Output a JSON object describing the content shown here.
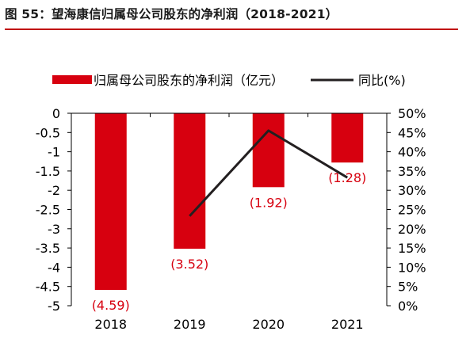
{
  "figure_title": "图 55：望海康信归属母公司股东的净利润（2018-2021）",
  "chart_data": {
    "type": "bar",
    "categories": [
      "2018",
      "2019",
      "2020",
      "2021"
    ],
    "series": [
      {
        "name": "归属母公司股东的净利润（亿元）",
        "type": "bar",
        "axis": "left",
        "values": [
          -4.59,
          -3.52,
          -1.92,
          -1.28
        ],
        "labels": [
          "(4.59)",
          "(3.52)",
          "(1.92)",
          "(1.28)"
        ],
        "color": "#d7000f"
      },
      {
        "name": "同比(%)",
        "type": "line",
        "axis": "right",
        "values": [
          null,
          23.3,
          45.5,
          33.3
        ],
        "color": "#231f20"
      }
    ],
    "y_left": {
      "range": [
        -5,
        0
      ],
      "tick_values": [
        0,
        -0.5,
        -1,
        -1.5,
        -2,
        -2.5,
        -3,
        -3.5,
        -4,
        -4.5,
        -5
      ],
      "tick_labels": [
        "0",
        "-0.5",
        "-1",
        "-1.5",
        "-2",
        "-2.5",
        "-3",
        "-3.5",
        "-4",
        "-4.5",
        "-5"
      ]
    },
    "y_right": {
      "range": [
        0,
        50
      ],
      "tick_values": [
        50,
        45,
        40,
        35,
        30,
        25,
        20,
        15,
        10,
        5,
        0
      ],
      "tick_labels": [
        "50%",
        "45%",
        "40%",
        "35%",
        "30%",
        "25%",
        "20%",
        "15%",
        "10%",
        "5%",
        "0%"
      ]
    },
    "legend_position": "top",
    "grid": false,
    "label_color": "#d7000f",
    "title_rule_color": "#c00000"
  }
}
